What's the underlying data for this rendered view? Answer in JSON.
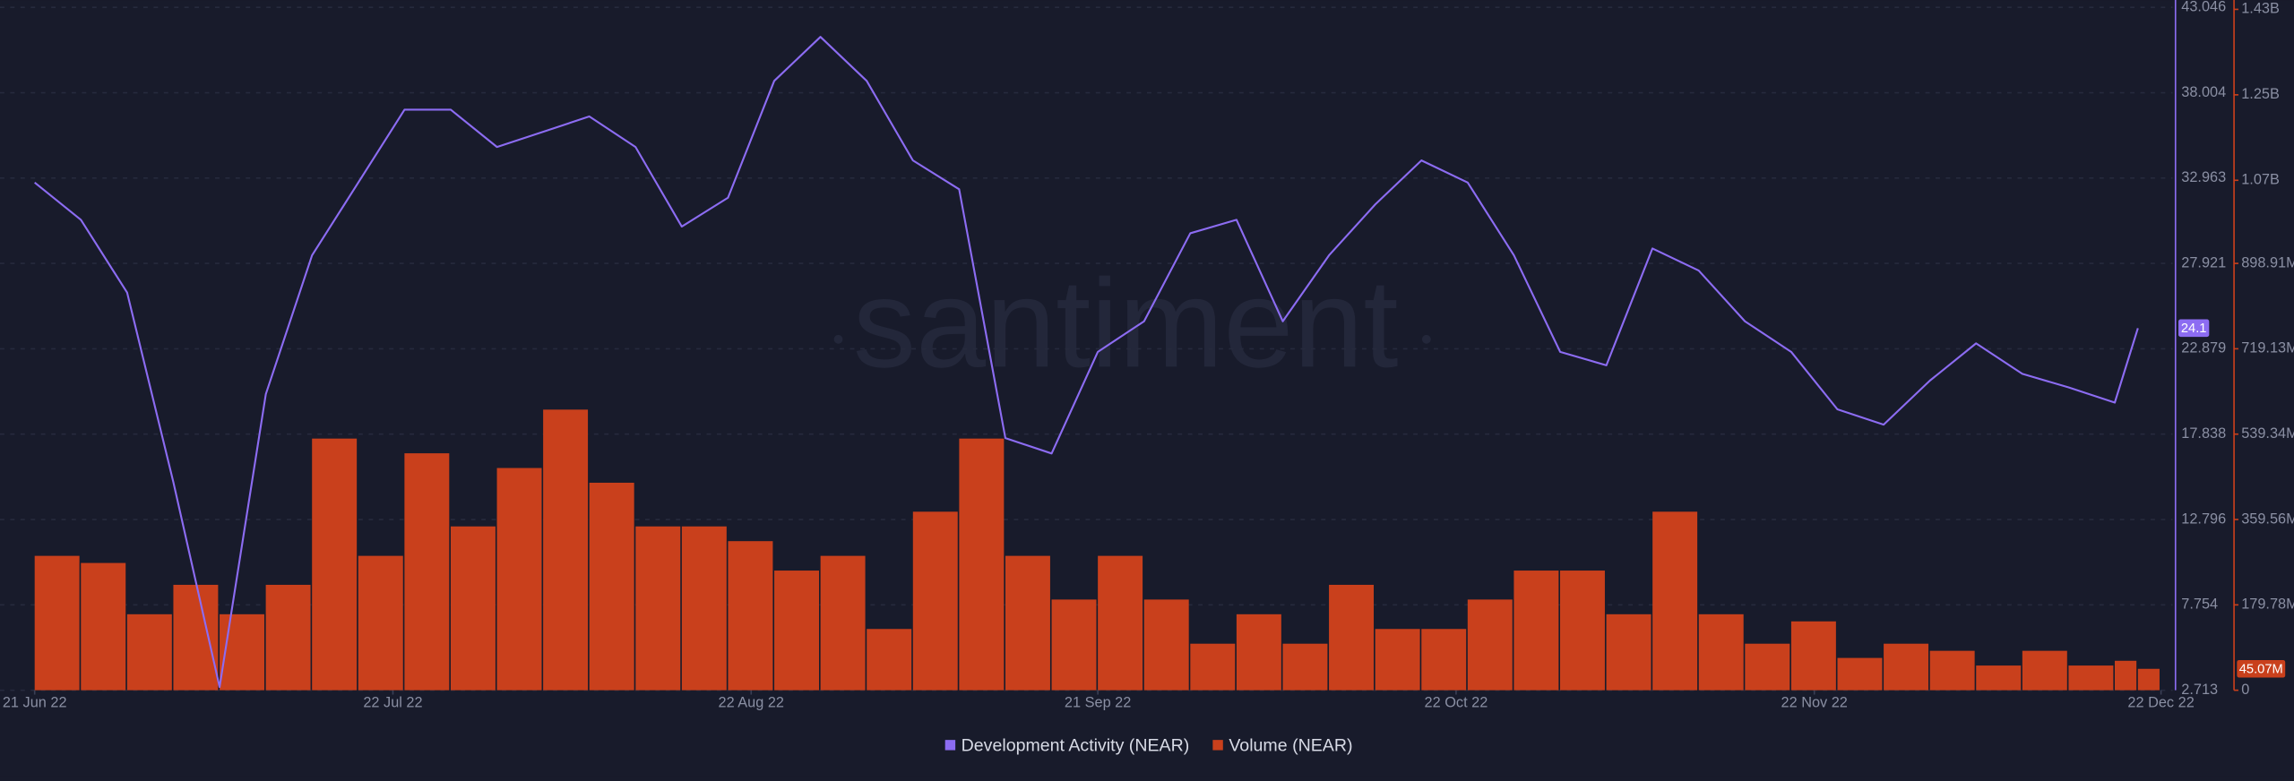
{
  "chart_data": {
    "type": "line-bar",
    "watermark": "santiment",
    "x": [
      "2022-06-21",
      "2022-06-25",
      "2022-06-29",
      "2022-07-03",
      "2022-07-07",
      "2022-07-11",
      "2022-07-15",
      "2022-07-19",
      "2022-07-23",
      "2022-07-27",
      "2022-07-31",
      "2022-08-04",
      "2022-08-08",
      "2022-08-12",
      "2022-08-16",
      "2022-08-20",
      "2022-08-24",
      "2022-08-28",
      "2022-09-01",
      "2022-09-05",
      "2022-09-09",
      "2022-09-13",
      "2022-09-17",
      "2022-09-21",
      "2022-09-25",
      "2022-09-29",
      "2022-10-03",
      "2022-10-07",
      "2022-10-11",
      "2022-10-15",
      "2022-10-19",
      "2022-10-23",
      "2022-10-27",
      "2022-10-31",
      "2022-11-04",
      "2022-11-08",
      "2022-11-12",
      "2022-11-16",
      "2022-11-20",
      "2022-11-24",
      "2022-11-28",
      "2022-12-02",
      "2022-12-06",
      "2022-12-10",
      "2022-12-14",
      "2022-12-18",
      "2022-12-20"
    ],
    "xlim": [
      "2022-06-18",
      "2022-12-23"
    ],
    "xticks": [
      {
        "value": "2022-06-21",
        "label": "21 Jun 22"
      },
      {
        "value": "2022-07-22",
        "label": "22 Jul 22"
      },
      {
        "value": "2022-08-22",
        "label": "22 Aug 22"
      },
      {
        "value": "2022-09-21",
        "label": "21 Sep 22"
      },
      {
        "value": "2022-10-22",
        "label": "22 Oct 22"
      },
      {
        "value": "2022-11-22",
        "label": "22 Nov 22"
      },
      {
        "value": "2022-12-22",
        "label": "22 Dec 22"
      }
    ],
    "ylim": [
      2.713,
      43.046
    ],
    "yticks": [
      2.713,
      7.754,
      12.796,
      17.838,
      22.879,
      27.921,
      32.963,
      38.004,
      43.046
    ],
    "y2lim": [
      0,
      1438240000
    ],
    "y2ticks": [
      0,
      {
        "value": 179780000,
        "label": "179.78M"
      },
      {
        "value": 359560000,
        "label": "359.56M"
      },
      {
        "value": 539340000,
        "label": "539.34M"
      },
      {
        "value": 719130000,
        "label": "719.13M"
      },
      {
        "value": 898910000,
        "label": "898.91M"
      },
      {
        "value": 1074000000,
        "label": "1.07B"
      },
      {
        "value": 1254000000,
        "label": "1.25B"
      },
      {
        "value": 1434000000,
        "label": "1.43B"
      }
    ],
    "grid": true,
    "series": [
      {
        "name": "Development Activity (NEAR)",
        "color": "#8c6cf2",
        "kind": "line",
        "values": [
          32.7,
          30.5,
          26.2,
          15,
          2.9,
          20.2,
          28.4,
          32.7,
          37,
          37,
          34.8,
          35.7,
          36.6,
          34.8,
          30.1,
          31.8,
          38.7,
          41.3,
          38.7,
          34,
          32.3,
          17.6,
          16.7,
          22.7,
          24.5,
          29.7,
          30.5,
          24.5,
          28.4,
          31.4,
          34,
          32.7,
          28.4,
          22.7,
          21.9,
          28.8,
          27.5,
          24.5,
          22.7,
          19.3,
          18.4,
          21,
          23.2,
          21.4,
          20.6,
          19.7,
          24.1
        ],
        "marker": {
          "value": 24.1,
          "label": "24.1"
        }
      },
      {
        "name": "Volume (NEAR)",
        "color": "#c9401c",
        "kind": "bar",
        "axis": "y2",
        "values": [
          283000000,
          268000000,
          160000000,
          222000000,
          160000000,
          222000000,
          530000000,
          283000000,
          499000000,
          345000000,
          468000000,
          591000000,
          437000000,
          345000000,
          345000000,
          314000000,
          252000000,
          283000000,
          129000000,
          376000000,
          530000000,
          283000000,
          191000000,
          283000000,
          191000000,
          98000000,
          160000000,
          98000000,
          222000000,
          129000000,
          129000000,
          191000000,
          252000000,
          252000000,
          160000000,
          376000000,
          160000000,
          98000000,
          145000000,
          68000000,
          98000000,
          83000000,
          52000000,
          83000000,
          52000000,
          62000000,
          45070000
        ],
        "marker": {
          "value": 45070000,
          "label": "45.07M"
        }
      }
    ]
  }
}
